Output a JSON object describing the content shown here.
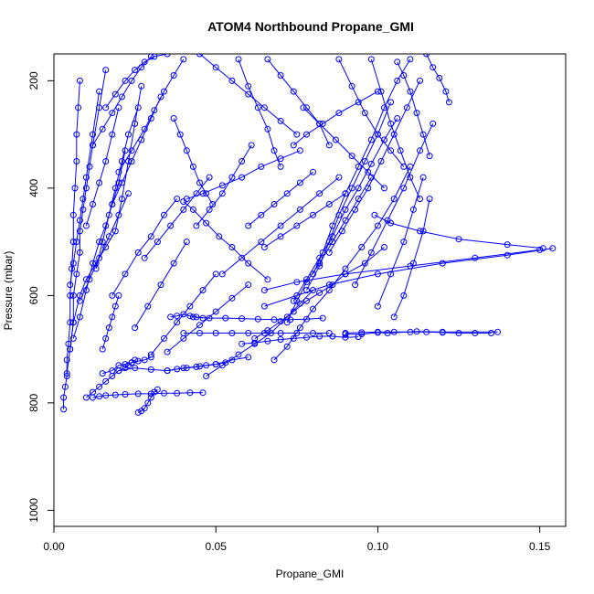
{
  "chart_data": {
    "type": "line",
    "title": "ATOM4 Northbound Propane_GMI",
    "xlabel": "Propane_GMI",
    "ylabel": "Pressure (mbar)",
    "xlim": [
      0.0,
      0.158
    ],
    "ylim": [
      1030,
      150
    ],
    "y_reversed": true,
    "x_ticks": [
      0.0,
      0.05,
      0.1,
      0.15
    ],
    "x_tick_labels": [
      "0.00",
      "0.05",
      "0.10",
      "0.15"
    ],
    "y_ticks": [
      200,
      400,
      600,
      800,
      1000
    ],
    "y_tick_labels": [
      "200",
      "400",
      "600",
      "800",
      "1000"
    ],
    "color": "#0000ff",
    "marker": "open-circle",
    "grid": false,
    "series": [
      {
        "x": [
          0.003,
          0.003,
          0.0035,
          0.004,
          0.004,
          0.0045,
          0.005,
          0.005,
          0.0055,
          0.006,
          0.006,
          0.0065,
          0.007,
          0.007,
          0.0075,
          0.008
        ],
        "y": [
          812,
          790,
          770,
          750,
          720,
          690,
          650,
          600,
          550,
          500,
          450,
          400,
          350,
          300,
          250,
          200
        ]
      },
      {
        "x": [
          0.004,
          0.005,
          0.006,
          0.006,
          0.007,
          0.008,
          0.008,
          0.009,
          0.01,
          0.011,
          0.012,
          0.014,
          0.016
        ],
        "y": [
          745,
          700,
          650,
          600,
          560,
          520,
          480,
          440,
          400,
          360,
          320,
          250,
          180
        ]
      },
      {
        "x": [
          0.005,
          0.006,
          0.008,
          0.01,
          0.013,
          0.016,
          0.019,
          0.021,
          0.023,
          0.025,
          0.027
        ],
        "y": [
          700,
          650,
          600,
          570,
          540,
          510,
          480,
          420,
          350,
          280,
          210
        ]
      },
      {
        "x": [
          0.006,
          0.008,
          0.01,
          0.012,
          0.014,
          0.016,
          0.018,
          0.02,
          0.022
        ],
        "y": [
          680,
          640,
          590,
          540,
          500,
          470,
          430,
          390,
          330
        ]
      },
      {
        "x": [
          0.005,
          0.006,
          0.007,
          0.008,
          0.009,
          0.01,
          0.012,
          0.014
        ],
        "y": [
          580,
          540,
          500,
          460,
          420,
          380,
          300,
          220
        ]
      },
      {
        "x": [
          0.01,
          0.012,
          0.014,
          0.016,
          0.018,
          0.02,
          0.022,
          0.023,
          0.024,
          0.025
        ],
        "y": [
          790,
          780,
          770,
          760,
          750,
          740,
          735,
          730,
          725,
          720
        ]
      },
      {
        "x": [
          0.015,
          0.018,
          0.02,
          0.022,
          0.024,
          0.026,
          0.028,
          0.03
        ],
        "y": [
          745,
          740,
          730,
          728,
          725,
          722,
          720,
          715
        ]
      },
      {
        "x": [
          0.012,
          0.014,
          0.016,
          0.019,
          0.022,
          0.026,
          0.03,
          0.034,
          0.038,
          0.042,
          0.046
        ],
        "y": [
          790,
          788,
          786,
          785,
          784,
          783,
          783,
          782,
          782,
          781,
          781
        ]
      },
      {
        "x": [
          0.026,
          0.027,
          0.028,
          0.029,
          0.03,
          0.031,
          0.032
        ],
        "y": [
          818,
          815,
          810,
          800,
          790,
          780,
          775
        ]
      },
      {
        "x": [
          0.015,
          0.016,
          0.017,
          0.018,
          0.019,
          0.02
        ],
        "y": [
          700,
          680,
          660,
          640,
          620,
          600
        ]
      },
      {
        "x": [
          0.02,
          0.025,
          0.03,
          0.035,
          0.04,
          0.045,
          0.05,
          0.055,
          0.06
        ],
        "y": [
          740,
          735,
          738,
          740,
          735,
          732,
          728,
          720,
          715
        ]
      },
      {
        "x": [
          0.035,
          0.038,
          0.041,
          0.044,
          0.047,
          0.05,
          0.053
        ],
        "y": [
          740,
          737,
          735,
          733,
          730,
          728,
          725
        ]
      },
      {
        "x": [
          0.04,
          0.045,
          0.05,
          0.055,
          0.06,
          0.065,
          0.07,
          0.075,
          0.08,
          0.085
        ],
        "y": [
          670,
          670,
          670,
          670,
          670,
          670,
          670,
          670,
          670,
          670
        ]
      },
      {
        "x": [
          0.09,
          0.095,
          0.1,
          0.105,
          0.11,
          0.115,
          0.12,
          0.125,
          0.13,
          0.135
        ],
        "y": [
          670,
          669,
          668,
          668,
          668,
          668,
          669,
          670,
          670,
          670
        ]
      },
      {
        "x": [
          0.137,
          0.12,
          0.112,
          0.103,
          0.1,
          0.095,
          0.09
        ],
        "y": [
          668,
          668,
          667,
          670,
          669,
          672,
          672
        ]
      },
      {
        "x": [
          0.043,
          0.048,
          0.053,
          0.058,
          0.063,
          0.068,
          0.073,
          0.078,
          0.083
        ],
        "y": [
          640,
          642,
          642,
          643,
          644,
          645,
          645,
          644,
          642
        ]
      },
      {
        "x": [
          0.058,
          0.062,
          0.066,
          0.07,
          0.074,
          0.078,
          0.082,
          0.086,
          0.09,
          0.094
        ],
        "y": [
          690,
          688,
          685,
          682,
          680,
          678,
          676,
          676,
          678,
          677
        ]
      },
      {
        "x": [
          0.036,
          0.038,
          0.04,
          0.042,
          0.044,
          0.046
        ],
        "y": [
          640,
          638,
          635,
          638,
          640,
          642
        ]
      },
      {
        "x": [
          0.047,
          0.052,
          0.057,
          0.062,
          0.067,
          0.072,
          0.076,
          0.08
        ],
        "y": [
          750,
          730,
          710,
          690,
          670,
          640,
          615,
          590
        ]
      },
      {
        "x": [
          0.062,
          0.066,
          0.07,
          0.074,
          0.078,
          0.082,
          0.086,
          0.09,
          0.096,
          0.102
        ],
        "y": [
          680,
          665,
          648,
          630,
          610,
          595,
          580,
          560,
          540,
          510
        ]
      },
      {
        "x": [
          0.068,
          0.072,
          0.076,
          0.08,
          0.085,
          0.09,
          0.095,
          0.1,
          0.105,
          0.11
        ],
        "y": [
          720,
          695,
          660,
          625,
          590,
          550,
          510,
          470,
          420,
          360
        ]
      },
      {
        "x": [
          0.072,
          0.075,
          0.078,
          0.082,
          0.086,
          0.09,
          0.094,
          0.098
        ],
        "y": [
          650,
          610,
          575,
          540,
          500,
          460,
          420,
          380
        ]
      },
      {
        "x": [
          0.074,
          0.078,
          0.082,
          0.086,
          0.09,
          0.094,
          0.098,
          0.102,
          0.106
        ],
        "y": [
          610,
          570,
          530,
          490,
          440,
          400,
          355,
          310,
          270
        ]
      },
      {
        "x": [
          0.078,
          0.082,
          0.085,
          0.088,
          0.092,
          0.096,
          0.1,
          0.104
        ],
        "y": [
          590,
          545,
          500,
          450,
          400,
          350,
          300,
          240
        ]
      },
      {
        "x": [
          0.08,
          0.083,
          0.086,
          0.09,
          0.094,
          0.098,
          0.102,
          0.106,
          0.11
        ],
        "y": [
          560,
          520,
          470,
          410,
          360,
          310,
          250,
          200,
          160
        ]
      },
      {
        "x": [
          0.085,
          0.089,
          0.093,
          0.097,
          0.101,
          0.105,
          0.109,
          0.113
        ],
        "y": [
          520,
          480,
          440,
          400,
          350,
          300,
          250,
          200
        ]
      },
      {
        "x": [
          0.093,
          0.098,
          0.103,
          0.108,
          0.113,
          0.117
        ],
        "y": [
          580,
          520,
          460,
          400,
          330,
          280
        ]
      },
      {
        "x": [
          0.1,
          0.104,
          0.108,
          0.111,
          0.114
        ],
        "y": [
          620,
          560,
          500,
          440,
          380
        ]
      },
      {
        "x": [
          0.105,
          0.108,
          0.111,
          0.114,
          0.116
        ],
        "y": [
          640,
          600,
          540,
          480,
          420
        ]
      },
      {
        "x": [
          0.151,
          0.14,
          0.125,
          0.113,
          0.104,
          0.099
        ],
        "y": [
          512,
          505,
          495,
          480,
          465,
          450
        ]
      },
      {
        "x": [
          0.154,
          0.14,
          0.12,
          0.1,
          0.085,
          0.075,
          0.065
        ],
        "y": [
          512,
          525,
          540,
          560,
          580,
          600,
          620
        ]
      },
      {
        "x": [
          0.15,
          0.13,
          0.11,
          0.09,
          0.075,
          0.065
        ],
        "y": [
          515,
          530,
          545,
          560,
          575,
          590
        ]
      },
      {
        "x": [
          0.04,
          0.043,
          0.047,
          0.051,
          0.055,
          0.06,
          0.066
        ],
        "y": [
          425,
          440,
          465,
          490,
          510,
          540,
          570
        ]
      },
      {
        "x": [
          0.041,
          0.046,
          0.052,
          0.058,
          0.064,
          0.07,
          0.076
        ],
        "y": [
          420,
          410,
          395,
          380,
          360,
          345,
          330
        ]
      },
      {
        "x": [
          0.028,
          0.032,
          0.036,
          0.04,
          0.044,
          0.048
        ],
        "y": [
          530,
          500,
          470,
          440,
          410,
          380
        ]
      },
      {
        "x": [
          0.018,
          0.022,
          0.026,
          0.03,
          0.034,
          0.038
        ],
        "y": [
          600,
          560,
          520,
          490,
          450,
          420
        ]
      },
      {
        "x": [
          0.025,
          0.029,
          0.033,
          0.037,
          0.041
        ],
        "y": [
          660,
          620,
          580,
          540,
          500
        ]
      },
      {
        "x": [
          0.03,
          0.034,
          0.038,
          0.042,
          0.046,
          0.05
        ],
        "y": [
          710,
          680,
          650,
          620,
          590,
          560
        ]
      },
      {
        "x": [
          0.035,
          0.04,
          0.045,
          0.05,
          0.055,
          0.06
        ],
        "y": [
          705,
          680,
          655,
          630,
          605,
          580
        ]
      },
      {
        "x": [
          0.02,
          0.024,
          0.028,
          0.031,
          0.034,
          0.037,
          0.04
        ],
        "y": [
          370,
          330,
          290,
          255,
          220,
          190,
          160
        ]
      },
      {
        "x": [
          0.018,
          0.021,
          0.024,
          0.027,
          0.03,
          0.033
        ],
        "y": [
          430,
          390,
          350,
          310,
          270,
          230
        ]
      },
      {
        "x": [
          0.012,
          0.015,
          0.018,
          0.021,
          0.024,
          0.027,
          0.03
        ],
        "y": [
          320,
          290,
          260,
          230,
          200,
          175,
          155
        ]
      },
      {
        "x": [
          0.016,
          0.019,
          0.022,
          0.025,
          0.028,
          0.031,
          0.035
        ],
        "y": [
          250,
          225,
          200,
          180,
          165,
          155,
          150
        ]
      },
      {
        "x": [
          0.013,
          0.015,
          0.017,
          0.019,
          0.021,
          0.023,
          0.026
        ],
        "y": [
          550,
          500,
          450,
          400,
          350,
          300,
          250
        ]
      },
      {
        "x": [
          0.01,
          0.012,
          0.014,
          0.016,
          0.018,
          0.02
        ],
        "y": [
          470,
          430,
          390,
          350,
          300,
          250
        ]
      },
      {
        "x": [
          0.008,
          0.011,
          0.014,
          0.017,
          0.02,
          0.023
        ],
        "y": [
          610,
          570,
          530,
          490,
          450,
          410
        ]
      },
      {
        "x": [
          0.037,
          0.039,
          0.041,
          0.043,
          0.045,
          0.047,
          0.049
        ],
        "y": [
          270,
          300,
          330,
          360,
          390,
          410,
          430
        ]
      },
      {
        "x": [
          0.044,
          0.048,
          0.052,
          0.055,
          0.058,
          0.061
        ],
        "y": [
          470,
          440,
          410,
          380,
          350,
          320
        ]
      },
      {
        "x": [
          0.057,
          0.06,
          0.063,
          0.066,
          0.068,
          0.07
        ],
        "y": [
          160,
          210,
          250,
          290,
          330,
          360
        ]
      },
      {
        "x": [
          0.066,
          0.07,
          0.074,
          0.078,
          0.082,
          0.085
        ],
        "y": [
          160,
          190,
          220,
          250,
          280,
          320
        ]
      },
      {
        "x": [
          0.077,
          0.082,
          0.087,
          0.092,
          0.097,
          0.102
        ],
        "y": [
          250,
          280,
          310,
          340,
          370,
          400
        ]
      },
      {
        "x": [
          0.088,
          0.092,
          0.096,
          0.1,
          0.104,
          0.108
        ],
        "y": [
          160,
          210,
          260,
          300,
          330,
          360
        ]
      },
      {
        "x": [
          0.098,
          0.101,
          0.104,
          0.107,
          0.11,
          0.113
        ],
        "y": [
          160,
          220,
          280,
          330,
          380,
          420
        ]
      },
      {
        "x": [
          0.06,
          0.064,
          0.068,
          0.072,
          0.076,
          0.08
        ],
        "y": [
          470,
          450,
          430,
          410,
          390,
          370
        ]
      },
      {
        "x": [
          0.052,
          0.058,
          0.064,
          0.07,
          0.076,
          0.082,
          0.088
        ],
        "y": [
          560,
          530,
          500,
          470,
          440,
          410,
          380
        ]
      },
      {
        "x": [
          0.065,
          0.07,
          0.075,
          0.08,
          0.085,
          0.09
        ],
        "y": [
          510,
          490,
          470,
          450,
          430,
          410
        ]
      },
      {
        "x": [
          0.106,
          0.108,
          0.11,
          0.112,
          0.114,
          0.116
        ],
        "y": [
          165,
          190,
          220,
          260,
          300,
          340
        ]
      },
      {
        "x": [
          0.115,
          0.117,
          0.119,
          0.121,
          0.122
        ],
        "y": [
          150,
          175,
          195,
          220,
          240
        ]
      },
      {
        "x": [
          0.074,
          0.078,
          0.083,
          0.088,
          0.094,
          0.1
        ],
        "y": [
          320,
          300,
          280,
          260,
          240,
          220
        ]
      },
      {
        "x": [
          0.045,
          0.05,
          0.055,
          0.06,
          0.065,
          0.07,
          0.075
        ],
        "y": [
          150,
          175,
          200,
          225,
          250,
          275,
          300
        ]
      }
    ]
  }
}
